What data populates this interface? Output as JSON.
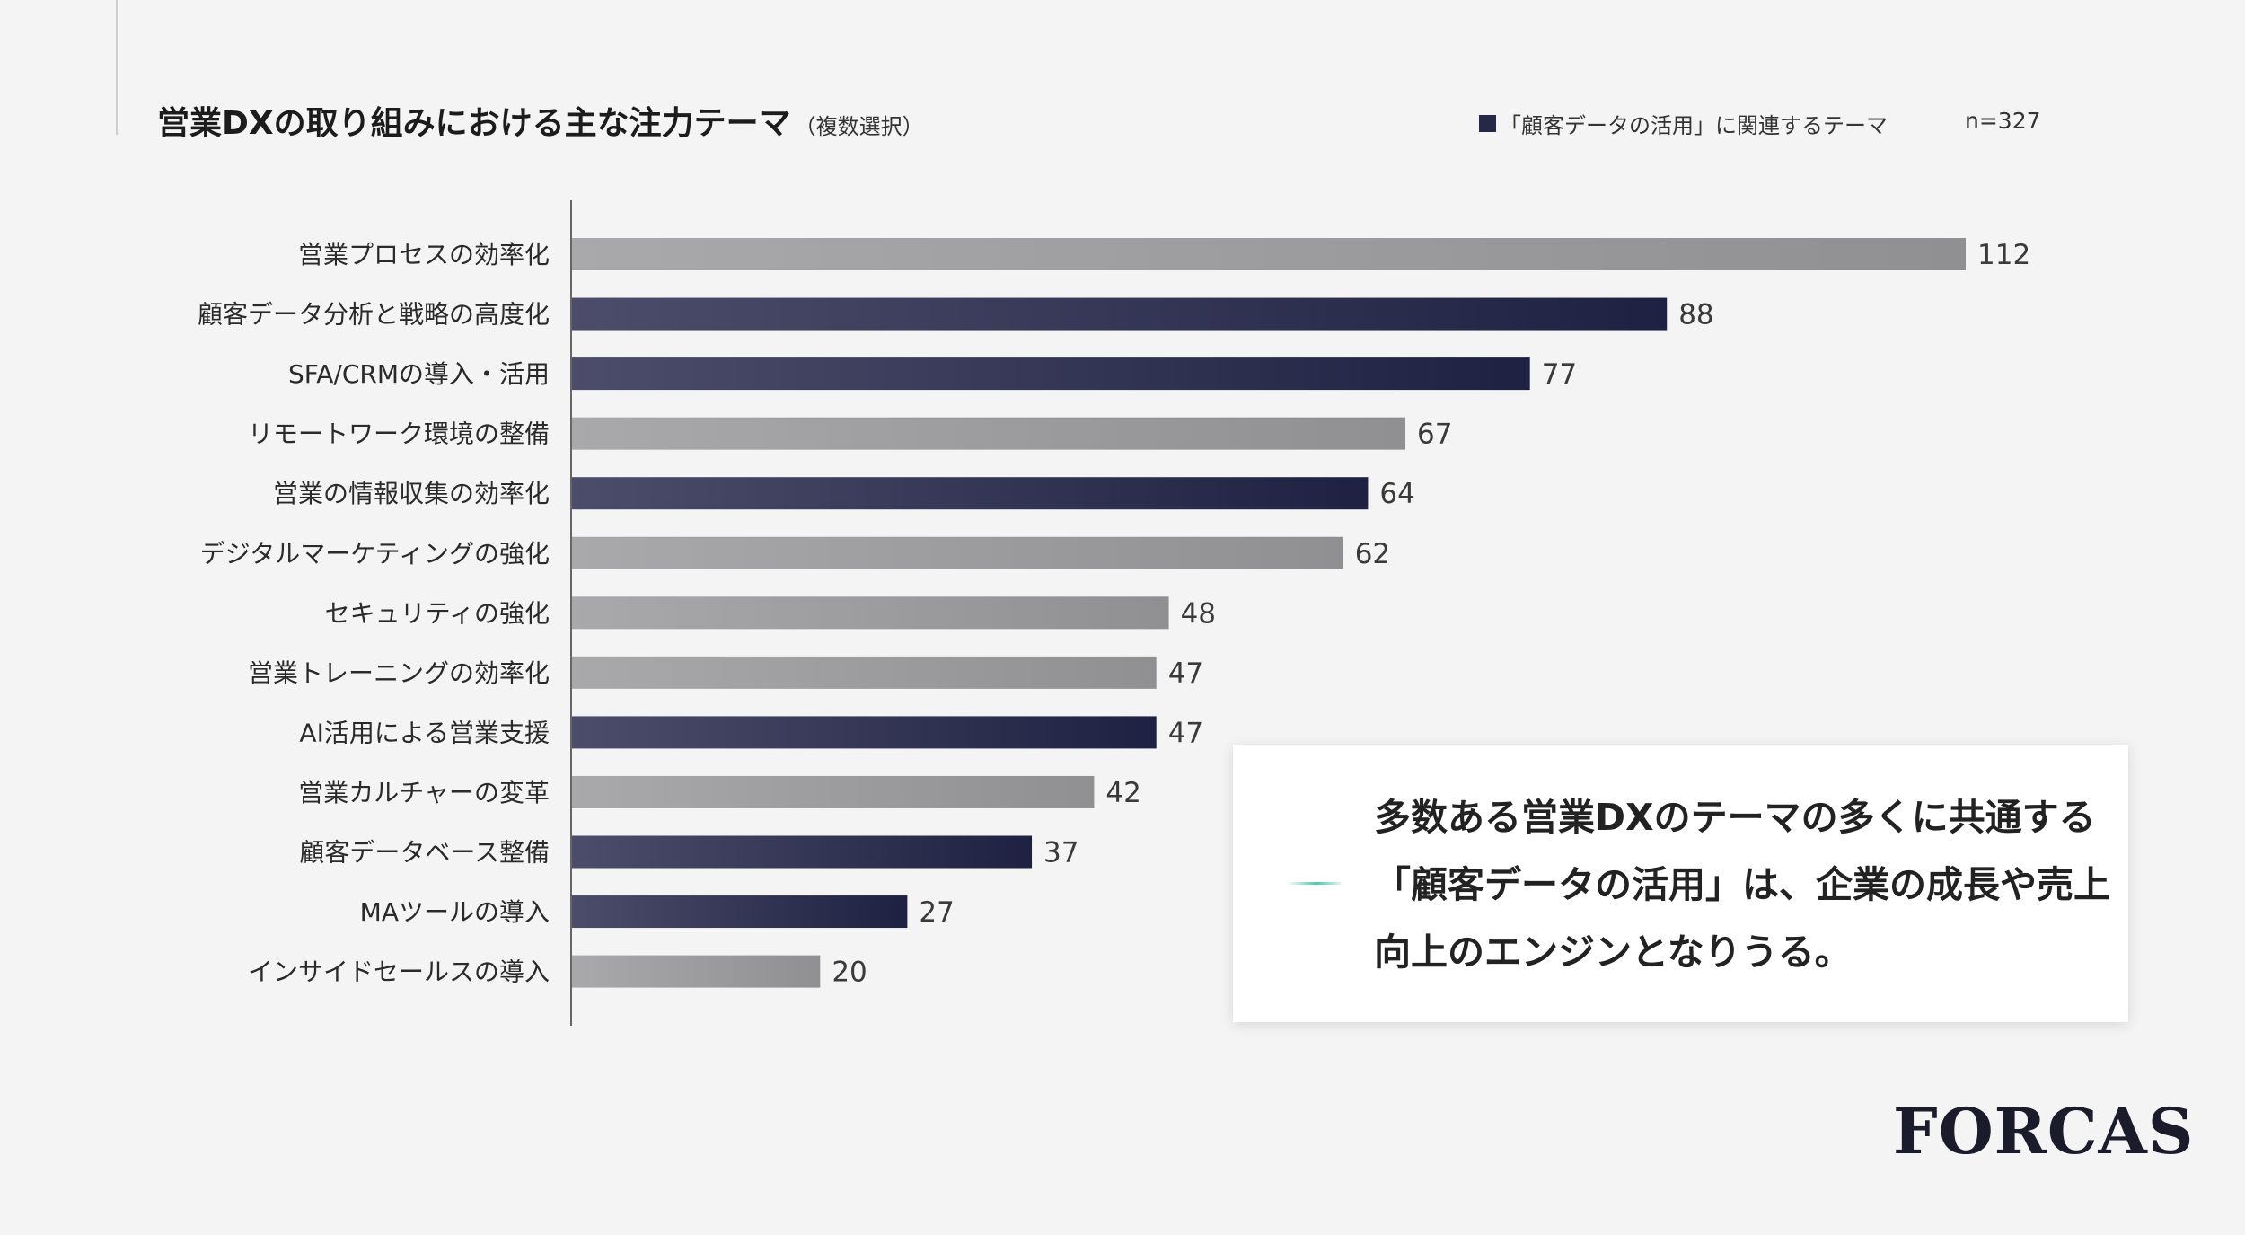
{
  "title": {
    "main": "営業DXの取り組みにおける主な注力テーマ",
    "sub": "（複数選択）"
  },
  "legend_label": "「顧客データの活用」に関連するテーマ",
  "sample_size": "n=327",
  "chart_data": {
    "type": "bar",
    "orientation": "horizontal",
    "title": "営業DXの取り組みにおける主な注力テーマ（複数選択）",
    "categories": [
      "営業プロセスの効率化",
      "顧客データ分析と戦略の高度化",
      "SFA/CRMの導入・活用",
      "リモートワーク環境の整備",
      "営業の情報収集の効率化",
      "デジタルマーケティングの強化",
      "セキュリティの強化",
      "営業トレーニングの効率化",
      "AI活用による営業支援",
      "営業カルチャーの変革",
      "顧客データベース整備",
      "MAツールの導入",
      "インサイドセールスの導入"
    ],
    "values": [
      112,
      88,
      77,
      67,
      64,
      62,
      48,
      47,
      47,
      42,
      37,
      27,
      20
    ],
    "customer_data_related": [
      false,
      true,
      true,
      false,
      true,
      false,
      false,
      false,
      true,
      false,
      true,
      true,
      false
    ],
    "xlim": [
      0,
      112
    ],
    "legend": [
      "「顧客データの活用」に関連するテーマ"
    ],
    "colors": {
      "highlight_start": "#4c4d6a",
      "highlight_end": "#1f2142",
      "other_start": "#a9a9ab",
      "other_end": "#909092",
      "axis": "#666666"
    }
  },
  "insight": "多数ある営業DXのテーマの多くに共通する「顧客データの活用」は、企業の成長や売上向上のエンジンとなりうる。",
  "logo": "FORCAS"
}
